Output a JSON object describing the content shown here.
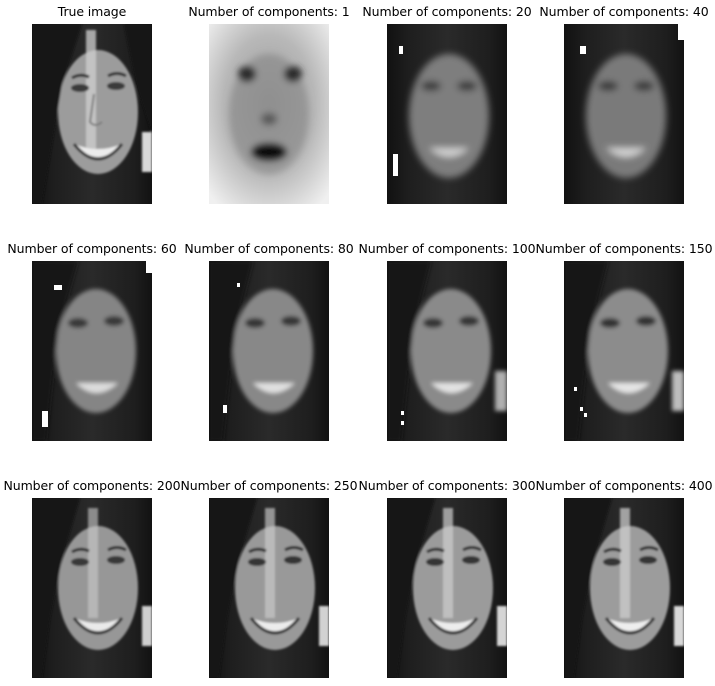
{
  "figure": {
    "panels": [
      {
        "title": "True image",
        "rendition": "original"
      },
      {
        "title": "Number of components: 1",
        "rendition": "mean-face"
      },
      {
        "title": "Number of components: 20",
        "rendition": "very-blurry"
      },
      {
        "title": "Number of components: 40",
        "rendition": "very-blurry"
      },
      {
        "title": "Number of components: 60",
        "rendition": "blurry"
      },
      {
        "title": "Number of components: 80",
        "rendition": "blurry"
      },
      {
        "title": "Number of components: 100",
        "rendition": "blurry"
      },
      {
        "title": "Number of components: 150",
        "rendition": "slightly-blurry"
      },
      {
        "title": "Number of components: 200",
        "rendition": "near-original"
      },
      {
        "title": "Number of components: 250",
        "rendition": "near-original"
      },
      {
        "title": "Number of components: 300",
        "rendition": "near-original"
      },
      {
        "title": "Number of components: 400",
        "rendition": "near-original"
      }
    ]
  }
}
